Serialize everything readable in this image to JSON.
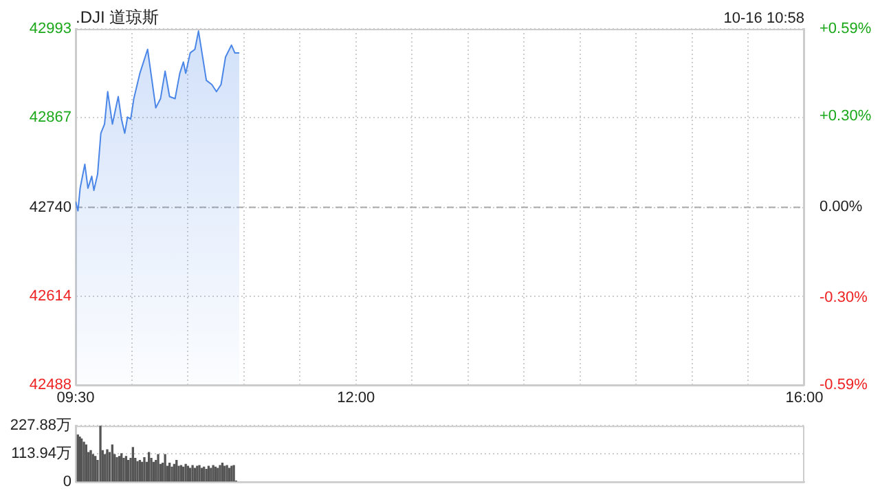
{
  "chart_data": [
    {
      "type": "area",
      "title": ".DJI 道琼斯",
      "subtitle": "10-16 10:58",
      "x": [
        9.5,
        9.521,
        9.54,
        9.582,
        9.61,
        9.644,
        9.663,
        9.696,
        9.725,
        9.758,
        9.786,
        9.828,
        9.88,
        9.909,
        9.938,
        9.963,
        9.991,
        10.019,
        10.073,
        10.142,
        10.215,
        10.257,
        10.298,
        10.338,
        10.387,
        10.429,
        10.461,
        10.482,
        10.522,
        10.564,
        10.596,
        10.666,
        10.715,
        10.756,
        10.797,
        10.837,
        10.89,
        10.92,
        10.96
      ],
      "series": [
        {
          "color": "#4a86e8",
          "values": [
            42748,
            42735,
            42767,
            42801,
            42767,
            42784,
            42764,
            42787,
            42845,
            42858,
            42904,
            42858,
            42897,
            42865,
            42845,
            42868,
            42865,
            42894,
            42930,
            42964,
            42881,
            42894,
            42933,
            42897,
            42894,
            42930,
            42946,
            42930,
            42959,
            42964,
            42990,
            42920,
            42914,
            42904,
            42914,
            42953,
            42970,
            42959,
            42959
          ]
        }
      ],
      "xlim": [
        9.5,
        16
      ],
      "xticks": [
        {
          "value": 9.5,
          "label": "09:30"
        },
        {
          "value": 10,
          "label": null
        },
        {
          "value": 10.5,
          "label": null
        },
        {
          "value": 11,
          "label": null
        },
        {
          "value": 11.5,
          "label": null
        },
        {
          "value": 12,
          "label": "12:00"
        },
        {
          "value": 12.5,
          "label": null
        },
        {
          "value": 13,
          "label": null
        },
        {
          "value": 13.5,
          "label": null
        },
        {
          "value": 14,
          "label": null
        },
        {
          "value": 14.5,
          "label": null
        },
        {
          "value": 15,
          "label": null
        },
        {
          "value": 15.5,
          "label": null
        },
        {
          "value": 16,
          "label": "16:00"
        }
      ],
      "ylim": [
        42488,
        42993
      ],
      "yticks": [
        42488,
        42614,
        42740,
        42867,
        42993
      ],
      "y2lim": [
        -0.59,
        0.59
      ],
      "y2ticks": [
        {
          "value": -0.59,
          "label": "-0.59%"
        },
        {
          "value": -0.3,
          "label": "-0.30%"
        },
        {
          "value": 0,
          "label": "0.00%"
        },
        {
          "value": 0.3,
          "label": "+0.30%"
        },
        {
          "value": 0.59,
          "label": "+0.59%"
        }
      ],
      "ref_lines": [
        {
          "axis": "y",
          "value": 42740,
          "line_style": "dashed",
          "color": "#aaaaaa"
        }
      ],
      "grid": true,
      "legend": false,
      "marker": "none"
    },
    {
      "type": "bar",
      "x": [
        9.52,
        9.537,
        9.553,
        9.574,
        9.594,
        9.615,
        9.635,
        9.655,
        9.676,
        9.696,
        9.721,
        9.741,
        9.762,
        9.782,
        9.803,
        9.827,
        9.848,
        9.868,
        9.889,
        9.909,
        9.929,
        9.95,
        9.97,
        9.991,
        10.011,
        10.032,
        10.052,
        10.073,
        10.093,
        10.113,
        10.134,
        10.154,
        10.175,
        10.195,
        10.216,
        10.236,
        10.257,
        10.277,
        10.298,
        10.318,
        10.338,
        10.359,
        10.379,
        10.4,
        10.42,
        10.441,
        10.461,
        10.482,
        10.502,
        10.522,
        10.543,
        10.563,
        10.584,
        10.604,
        10.625,
        10.645,
        10.666,
        10.686,
        10.707,
        10.727,
        10.747,
        10.768,
        10.788,
        10.809,
        10.829,
        10.85,
        10.87,
        10.891,
        10.911,
        10.931
      ],
      "series": [
        {
          "color": "#555555",
          "values": [
            190,
            182,
            174,
            161,
            150,
            119,
            127,
            111,
            103,
            87,
            227,
            127,
            111,
            130,
            119,
            150,
            111,
            98,
            103,
            114,
            95,
            103,
            87,
            95,
            139,
            95,
            82,
            87,
            79,
            98,
            79,
            119,
            95,
            79,
            87,
            111,
            71,
            76,
            111,
            63,
            76,
            60,
            71,
            87,
            63,
            66,
            60,
            71,
            63,
            55,
            66,
            55,
            63,
            66,
            55,
            60,
            51,
            63,
            55,
            66,
            60,
            55,
            66,
            76,
            63,
            66,
            55,
            63,
            66,
            3
          ]
        }
      ],
      "xlim": [
        9.5,
        16
      ],
      "ylim": [
        0,
        227.88
      ],
      "yticks": [
        {
          "value": 0,
          "label": "0"
        },
        {
          "value": 113.94,
          "label": "113.94万"
        },
        {
          "value": 227.88,
          "label": "227.88万"
        }
      ],
      "tick_labels": "y",
      "grid": "y",
      "legend": false
    }
  ]
}
